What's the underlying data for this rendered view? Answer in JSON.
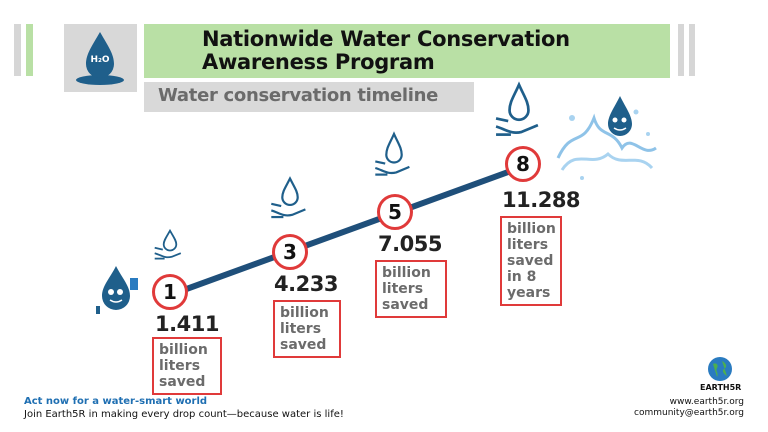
{
  "header": {
    "title_line1": "Nationwide Water Conservation",
    "title_line2": "Awareness Program",
    "subtitle": "Water conservation timeline"
  },
  "milestones": [
    {
      "year": "1",
      "value": "1.411",
      "unit_lines": [
        "billion",
        "liters",
        "saved"
      ]
    },
    {
      "year": "3",
      "value": "4.233",
      "unit_lines": [
        "billion",
        "liters",
        "saved"
      ]
    },
    {
      "year": "5",
      "value": "7.055",
      "unit_lines": [
        "billion",
        "liters",
        "saved"
      ]
    },
    {
      "year": "8",
      "value": "11.288",
      "unit_lines": [
        "billion",
        "liters",
        "saved",
        "in 8",
        "years"
      ]
    }
  ],
  "footer": {
    "cta": "Act now for a water-smart world",
    "sub": "Join Earth5R  in making every drop count—because water is life!",
    "brand": "EARTH5R",
    "website": "www.earth5r.org",
    "email": "community@earth5r.org"
  },
  "logo": {
    "label": "H₂O"
  },
  "colors": {
    "accent_red": "#e03a3a",
    "line_blue": "#1f4f7a",
    "green": "#b9e0a5",
    "icon_blue": "#1f5f8b"
  },
  "icons": [
    "water-drop-hand-icon",
    "mascot-drop-icon",
    "water-splash-icon",
    "globe-icon"
  ]
}
